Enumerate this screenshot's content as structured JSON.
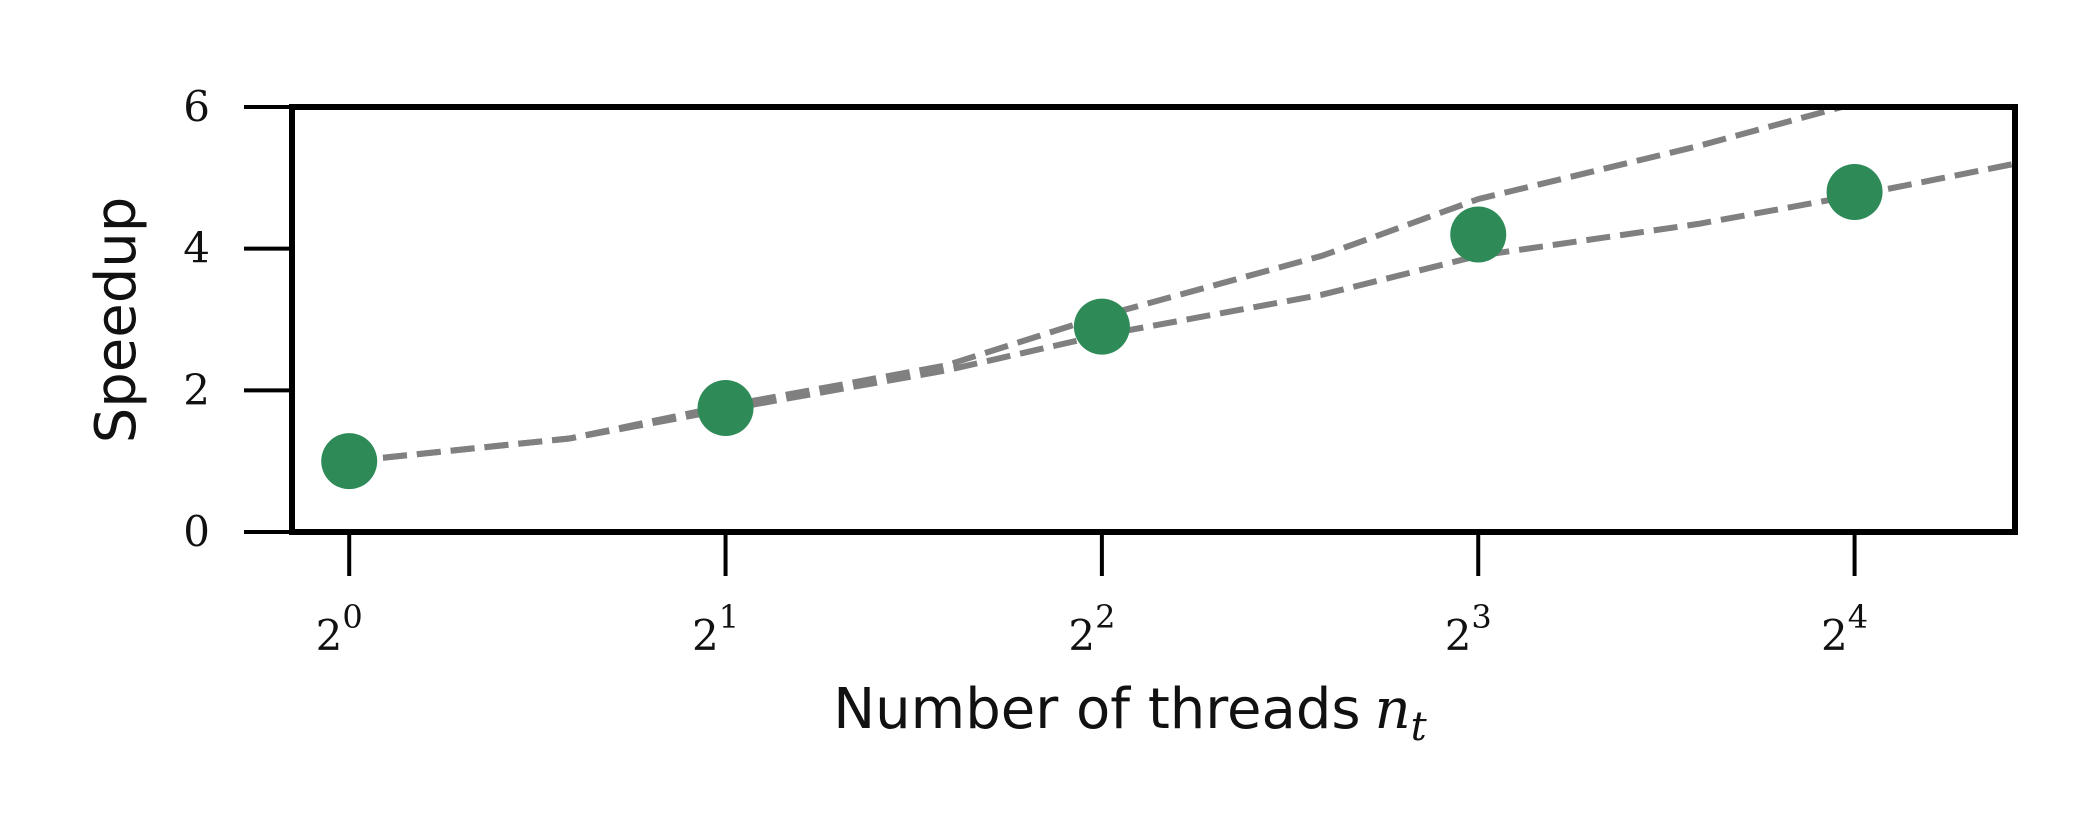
{
  "chart_data": {
    "type": "scatter",
    "title": "",
    "xlabel": "Number of threads",
    "xlabel_math": "n",
    "xlabel_math_sub": "t",
    "ylabel": "Speedup",
    "x_scale": "log2",
    "xlim": [
      0.9,
      21.5
    ],
    "ylim": [
      0,
      6
    ],
    "x_ticks": [
      {
        "value": 1,
        "base": "2",
        "exp": "0"
      },
      {
        "value": 2,
        "base": "2",
        "exp": "1"
      },
      {
        "value": 4,
        "base": "2",
        "exp": "2"
      },
      {
        "value": 8,
        "base": "2",
        "exp": "3"
      },
      {
        "value": 16,
        "base": "2",
        "exp": "4"
      }
    ],
    "y_ticks": [
      {
        "value": 0,
        "label": "0"
      },
      {
        "value": 2,
        "label": "2"
      },
      {
        "value": 4,
        "label": "4"
      },
      {
        "value": 6,
        "label": "6"
      }
    ],
    "grid": false,
    "legend": "none",
    "points": {
      "x": [
        1,
        2,
        4,
        8,
        16
      ],
      "y": [
        1.0,
        1.75,
        2.9,
        4.2,
        4.8
      ],
      "color": "#2e8b57"
    },
    "fit_lines": [
      {
        "x": [
          1,
          1.5,
          2,
          3,
          4,
          6,
          8,
          12,
          16,
          21.5
        ],
        "y": [
          1.0,
          1.32,
          1.78,
          2.35,
          3.05,
          3.9,
          4.7,
          5.45,
          6.05,
          6.55
        ],
        "color": "#808080",
        "style": "dashed"
      },
      {
        "x": [
          1,
          1.5,
          2,
          3,
          4,
          6,
          8,
          12,
          16,
          21.5
        ],
        "y": [
          1.0,
          1.32,
          1.73,
          2.28,
          2.78,
          3.35,
          3.9,
          4.35,
          4.75,
          5.2
        ],
        "color": "#808080",
        "style": "dashed"
      }
    ]
  }
}
